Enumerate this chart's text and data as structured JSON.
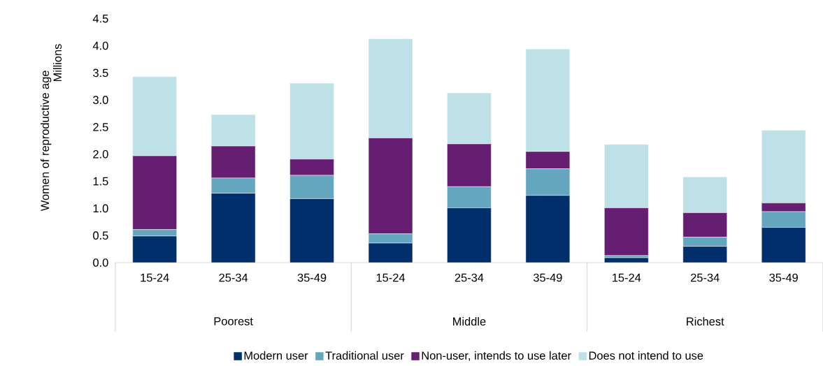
{
  "chart_data": {
    "type": "bar",
    "stacked": true,
    "ylabel": "Women of reproductive age",
    "categories": [
      "15-24",
      "25-34",
      "35-49",
      "15-24",
      "25-34",
      "35-49",
      "15-24",
      "25-34",
      "35-49"
    ],
    "annotations": [
      "Millions",
      "Poorest",
      "Middle",
      "Richest"
    ],
    "series": [
      {
        "name": "Modern user",
        "color": "#002f6c",
        "values": [
          0.49,
          1.28,
          1.18,
          0.36,
          1.01,
          1.24,
          0.09,
          0.3,
          0.65
        ]
      },
      {
        "name": "Traditional user",
        "color": "#64a6be",
        "values": [
          0.12,
          0.28,
          0.43,
          0.17,
          0.39,
          0.49,
          0.04,
          0.17,
          0.29
        ]
      },
      {
        "name": "Non-user, intends to use later",
        "color": "#661e72",
        "values": [
          1.36,
          0.59,
          0.3,
          1.77,
          0.79,
          0.32,
          0.88,
          0.45,
          0.16
        ]
      },
      {
        "name": "Does not intend to use",
        "color": "#bde1e6",
        "values": [
          1.46,
          0.58,
          1.4,
          1.83,
          0.94,
          1.89,
          1.17,
          0.66,
          1.34
        ]
      }
    ],
    "ylim": [
      0,
      4.5
    ],
    "yticks": [
      {
        "value": 0,
        "label": "0.0"
      },
      {
        "value": 0.5,
        "label": "0.5"
      },
      {
        "value": 1,
        "label": "1.0"
      },
      {
        "value": 1.5,
        "label": "1.5"
      },
      {
        "value": 2,
        "label": "2.0"
      },
      {
        "value": 2.5,
        "label": "2.5"
      },
      {
        "value": 3,
        "label": "3.0"
      },
      {
        "value": 3.5,
        "label": "3.5"
      },
      {
        "value": 4,
        "label": "4.0"
      },
      {
        "value": 4.5,
        "label": "4.5"
      }
    ],
    "grid": false,
    "legend": "bottom"
  }
}
